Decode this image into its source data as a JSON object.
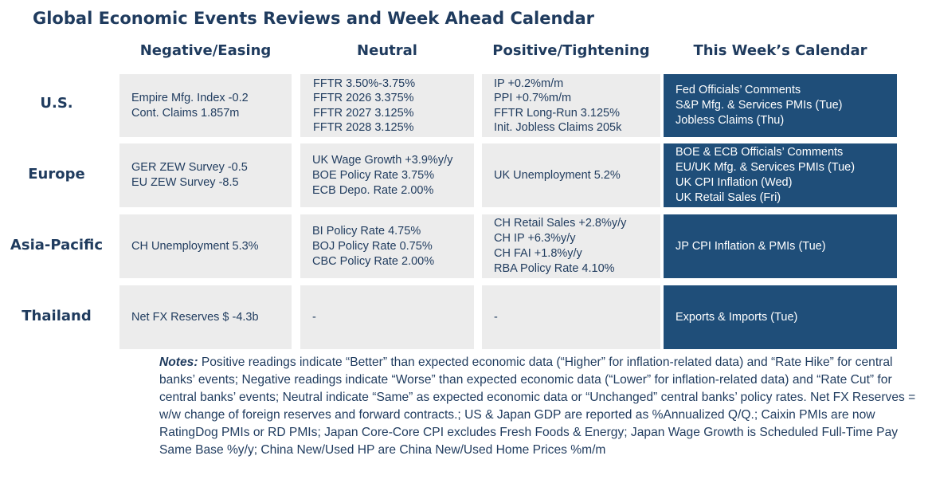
{
  "title": "Global Economic Events Reviews and Week Ahead Calendar",
  "columns": [
    "Negative/Easing",
    "Neutral",
    "Positive/Tightening",
    "This Week’s Calendar"
  ],
  "rows": [
    {
      "region": "U.S.",
      "negative": [
        "Empire Mfg. Index -0.2",
        "Cont. Claims 1.857m"
      ],
      "neutral": [
        "FFTR 3.50%-3.75%",
        "FFTR 2026 3.375%",
        "FFTR 2027 3.125%",
        "FFTR 2028 3.125%"
      ],
      "positive": [
        "IP +0.2%m/m",
        "PPI +0.7%m/m",
        "FFTR Long-Run 3.125%",
        "Init. Jobless Claims 205k"
      ],
      "calendar": [
        "Fed Officials’ Comments",
        "S&P Mfg. & Services PMIs (Tue)",
        "Jobless Claims (Thu)"
      ]
    },
    {
      "region": "Europe",
      "negative": [
        "GER ZEW Survey -0.5",
        "EU ZEW Survey -8.5"
      ],
      "neutral": [
        "UK Wage Growth +3.9%y/y",
        "BOE Policy Rate 3.75%",
        "ECB Depo. Rate 2.00%"
      ],
      "positive": [
        "UK Unemployment 5.2%"
      ],
      "calendar": [
        "BOE & ECB Officials’ Comments",
        "EU/UK Mfg. & Services PMIs (Tue)",
        "UK CPI Inflation (Wed)",
        "UK Retail Sales (Fri)"
      ]
    },
    {
      "region": "Asia-Pacific",
      "negative": [
        "CH Unemployment 5.3%"
      ],
      "neutral": [
        "BI Policy Rate 4.75%",
        "BOJ Policy Rate 0.75%",
        "CBC Policy Rate 2.00%"
      ],
      "positive": [
        "CH Retail Sales +2.8%y/y",
        "CH IP +6.3%y/y",
        "CH FAI +1.8%y/y",
        "RBA Policy Rate 4.10%"
      ],
      "calendar": [
        "JP CPI Inflation & PMIs (Tue)"
      ]
    },
    {
      "region": "Thailand",
      "negative": [
        "Net FX Reserves $ -4.3b"
      ],
      "neutral": [
        "-"
      ],
      "positive": [
        "-"
      ],
      "calendar": [
        "Exports & Imports (Tue)"
      ]
    }
  ],
  "notes": {
    "label": "Notes:",
    "text": " Positive readings indicate “Better” than expected economic data (“Higher” for inflation-related data) and “Rate Hike” for central banks’ events; Negative readings indicate “Worse” than expected economic data (“Lower” for inflation-related data) and “Rate Cut” for central banks’ events; Neutral indicate “Same” as expected economic data or “Unchanged” central banks’ policy rates. Net FX Reserves = w/w change of foreign reserves and forward contracts.; US & Japan GDP are reported as %Annualized Q/Q.; Caixin PMIs are now RatingDog PMIs or RD PMIs; Japan Core-Core CPI excludes Fresh Foods & Energy; Japan Wage Growth is Scheduled Full-Time Pay Same Base %y/y; China New/Used HP are China New/Used Home Prices %m/m"
  }
}
